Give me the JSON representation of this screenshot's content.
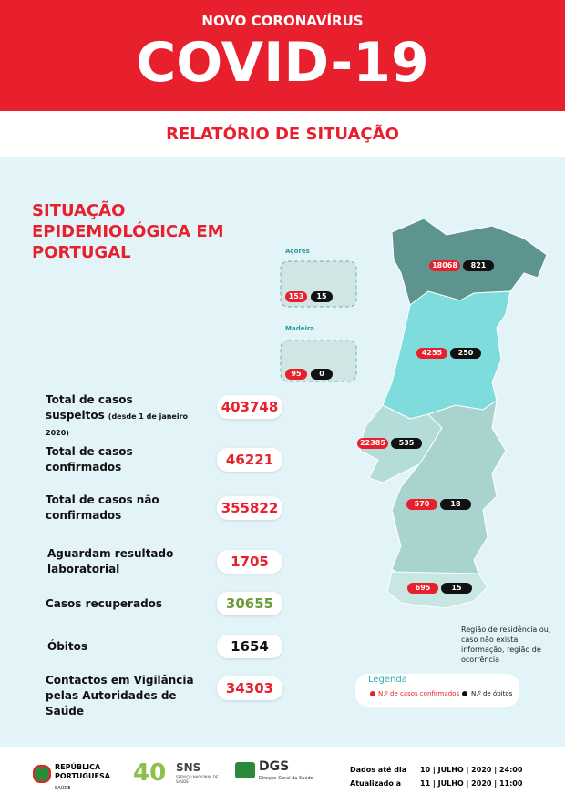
{
  "header": {
    "kicker": "NOVO CORONAVÍRUS",
    "title": "COVID-19",
    "subtitle": "RELATÓRIO DE SITUAÇÃO"
  },
  "section_title": "SITUAÇÃO EPIDEMIOLÓGICA EM PORTUGAL",
  "stats": [
    {
      "label": "Total de casos suspeitos",
      "note": "(desde 1 de janeiro 2020)",
      "value": 403748
    },
    {
      "label": "Total de casos confirmados",
      "value": 46221
    },
    {
      "label": "Total de casos não confirmados",
      "value": 355822
    },
    {
      "label": "Aguardam resultado laboratorial",
      "value": 1705
    },
    {
      "label": "Casos recuperados",
      "value": 30655
    },
    {
      "label": "Óbitos",
      "value": 1654
    },
    {
      "label": "Contactos em Vigilância pelas Autoridades de Saúde",
      "value": 34303
    }
  ],
  "islands": [
    {
      "name": "Açores",
      "cases": 153,
      "deaths": 15
    },
    {
      "name": "Madeira",
      "cases": 95,
      "deaths": 0
    }
  ],
  "regions": [
    {
      "cases": 18068,
      "deaths": 821
    },
    {
      "cases": 4255,
      "deaths": 250
    },
    {
      "cases": 22385,
      "deaths": 535
    },
    {
      "cases": 570,
      "deaths": 18
    },
    {
      "cases": 695,
      "deaths": 15
    }
  ],
  "map_note": "Região de residência ou, caso não exista informação, região de ocorrência",
  "legend": {
    "title": "Legenda",
    "cases": "N.º de casos confirmados",
    "deaths": "N.º de óbitos"
  },
  "footer": {
    "gov": "REPÚBLICA PORTUGUESA",
    "gov_sub": "SAÚDE",
    "sns_years": "40",
    "sns": "SNS",
    "sns_sub": "SERVIÇO NACIONAL DE SAÚDE",
    "dgs": "DGS",
    "dgs_sub": "Direção-Geral da Saúde",
    "data_label": "Dados até dia",
    "data_date": "10 | JULHO | 2020 | 24:00",
    "updated_label": "Atualizado a",
    "updated_date": "11 | JULHO | 2020 | 11:00"
  }
}
